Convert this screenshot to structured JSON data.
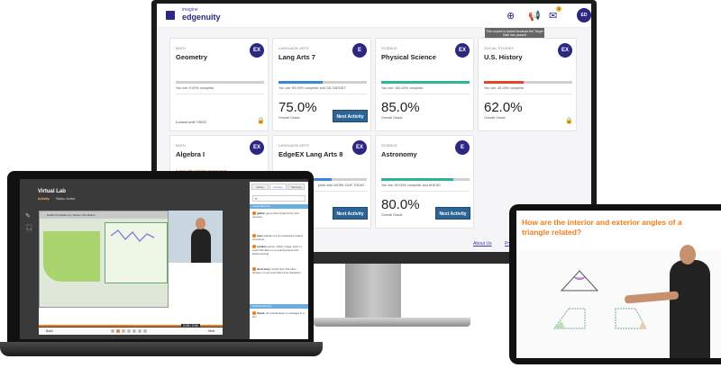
{
  "monitor": {
    "logo": {
      "line1": "imagine",
      "line2": "edgenuity",
      "icon": "edgenuity-logo-icon"
    },
    "header": {
      "add_icon": "plus-circle-icon",
      "announce_icon": "megaphone-icon",
      "mail_icon": "envelope-icon",
      "mail_badge": "3",
      "avatar": "ED"
    },
    "tooltip": "This course is locked because the Target Date has passed",
    "cards": [
      {
        "subject": "MATH",
        "title": "Geometry",
        "badge": "EX",
        "progress": 0,
        "progress_text": "You are: 0.00% complete",
        "locked_text": "Locked until 7/5/23",
        "color": "#c8c8c8"
      },
      {
        "subject": "LANGUAGE ARTS",
        "title": "Lang Arts 7",
        "badge": "E",
        "progress": 50,
        "progress_text": "You are: 50.00% complete and ON TARGET",
        "grade": "75.0%",
        "grade_label": "Overall Grade",
        "button": "Next Activity",
        "color": "#3b86d6"
      },
      {
        "subject": "SCIENCE",
        "title": "Physical Science",
        "badge": "EX",
        "progress": 100,
        "progress_text": "You are: 100.00% complete",
        "grade": "85.0%",
        "grade_label": "Overall Grade",
        "color": "#2bb59a"
      },
      {
        "subject": "SOCIAL STUDIES",
        "title": "U.S. History",
        "badge": "EX",
        "progress": 45,
        "progress_text": "You are: 45.00% complete",
        "grade": "62.0%",
        "grade_label": "Overall Grade",
        "color": "#e0452e"
      },
      {
        "subject": "MATH",
        "title": "Algebra I",
        "badge": "EX",
        "warning": "3 days left until this course ends"
      },
      {
        "subject": "LANGUAGE ARTS",
        "title": "EdgeEX Lang Arts 8",
        "badge": "EX",
        "progress": 60,
        "progress_text": "plete with WORK DUE TODAY",
        "button": "Next Activity",
        "color": "#3b86d6"
      },
      {
        "subject": "SCIENCE",
        "title": "Astronomy",
        "badge": "E",
        "progress": 82,
        "progress_text": "You are: 82.00% complete and AHEAD",
        "grade": "80.0%",
        "grade_label": "Overall Grade",
        "button": "Next Activity",
        "color": "#2bb59a"
      }
    ],
    "footer": {
      "about": "About Us",
      "privacy": "Pri"
    }
  },
  "laptop": {
    "title": "Virtual Lab",
    "activity": "Activity",
    "status": "Status: Active",
    "sim_title": "Rabbit Population by Season Simulation",
    "tabs": [
      "eNotes",
      "Glossary",
      "Transcript"
    ],
    "lesson_wordlist": "Lesson Word List",
    "personal_wordlist": "Personal Word List",
    "glossary": [
      {
        "term": "gothic:",
        "def": "genre that merges horror and romance"
      },
      {
        "term": "tone:",
        "def": "attitude of a text toward the subject and theme"
      },
      {
        "term": "symbol:",
        "def": "person, object, image, word, or event that takes on a meaning beyond its literal meaning"
      },
      {
        "term": "short story:",
        "def": "a brief story that often focuses on one event with a few characters"
      }
    ],
    "personal": [
      {
        "term": "theme:",
        "def": "the central ideas or messages in a text"
      }
    ],
    "time": "2:28 / 2:46",
    "back": "Back",
    "next": "Next",
    "progress": 0.95
  },
  "tablet": {
    "question": "How are the interior and exterior angles of a triangle related?"
  }
}
